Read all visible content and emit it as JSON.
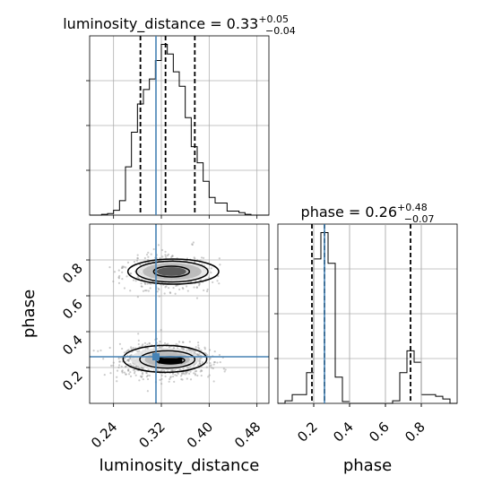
{
  "chart_data": {
    "type": "corner",
    "truths": {
      "luminosity_distance": 0.311,
      "phase": 0.26
    },
    "colors": {
      "truth": "#4682b4",
      "hist": "#000000",
      "grid": "#b0b0b0",
      "scatter": "#9a9a9a"
    },
    "params": [
      {
        "name": "luminosity_distance",
        "label": "luminosity_distance",
        "title": {
          "prefix": "luminosity_distance = 0.33",
          "upper": "+0.05",
          "lower": "−0.04"
        },
        "range": [
          0.2,
          0.5
        ],
        "ticks": [
          {
            "value": 0.24,
            "label": "0.24"
          },
          {
            "value": 0.32,
            "label": "0.32"
          },
          {
            "value": 0.4,
            "label": "0.40"
          },
          {
            "value": 0.48,
            "label": "0.48"
          }
        ],
        "quantiles": [
          0.285,
          0.327,
          0.376
        ],
        "hist_edges": [
          0.2,
          0.21,
          0.22,
          0.23,
          0.24,
          0.25,
          0.26,
          0.27,
          0.28,
          0.29,
          0.3,
          0.31,
          0.32,
          0.33,
          0.34,
          0.35,
          0.36,
          0.37,
          0.38,
          0.39,
          0.4,
          0.41,
          0.42,
          0.43,
          0.44,
          0.45,
          0.46,
          0.47,
          0.48,
          0.49,
          0.5
        ],
        "hist_counts": [
          0,
          0,
          1,
          2,
          6,
          18,
          60,
          103,
          138,
          156,
          169,
          192,
          212,
          200,
          178,
          160,
          121,
          85,
          65,
          42,
          22,
          15,
          15,
          5,
          5,
          3,
          1,
          0,
          0,
          0
        ]
      },
      {
        "name": "phase",
        "label": "phase",
        "title": {
          "prefix": "phase = 0.26",
          "upper": "+0.48",
          "lower": "−0.07"
        },
        "range": [
          0.0,
          1.0
        ],
        "ticks": [
          {
            "value": 0.2,
            "label": "0.2"
          },
          {
            "value": 0.4,
            "label": "0.4"
          },
          {
            "value": 0.6,
            "label": "0.6"
          },
          {
            "value": 0.8,
            "label": "0.8"
          }
        ],
        "quantiles": [
          0.19,
          0.26,
          0.74
        ],
        "hist_edges": [
          0.0,
          0.04,
          0.08,
          0.12,
          0.16,
          0.2,
          0.24,
          0.28,
          0.32,
          0.36,
          0.4,
          0.44,
          0.48,
          0.52,
          0.56,
          0.6,
          0.64,
          0.68,
          0.72,
          0.76,
          0.8,
          0.84,
          0.88,
          0.92,
          0.96,
          1.0
        ],
        "hist_counts": [
          0,
          3,
          10,
          10,
          35,
          165,
          195,
          160,
          30,
          2,
          0,
          0,
          0,
          0,
          0,
          0,
          3,
          35,
          60,
          47,
          10,
          10,
          8,
          5,
          0
        ]
      }
    ],
    "density_2d": {
      "x": "luminosity_distance",
      "y": "phase",
      "modes": [
        {
          "x": 0.327,
          "y": 0.238,
          "sx": 0.036,
          "sy": 0.045,
          "w": 0.68
        },
        {
          "x": 0.33,
          "y": 0.735,
          "sx": 0.036,
          "sy": 0.05,
          "w": 0.32
        }
      ],
      "contours": [
        {
          "level": "inner",
          "modes": [
            {
              "x": 0.335,
              "y": 0.24,
              "rx": 0.024,
              "ry": 0.02
            },
            {
              "x": 0.337,
              "y": 0.735,
              "rx": 0.03,
              "ry": 0.03
            }
          ]
        },
        {
          "level": "middle",
          "modes": [
            {
              "x": 0.33,
              "y": 0.245,
              "rx": 0.046,
              "ry": 0.048
            },
            {
              "x": 0.338,
              "y": 0.735,
              "rx": 0.06,
              "ry": 0.058
            }
          ]
        },
        {
          "level": "outer",
          "modes": [
            {
              "x": 0.326,
              "y": 0.248,
              "rx": 0.07,
              "ry": 0.075
            },
            {
              "x": 0.34,
              "y": 0.735,
              "rx": 0.076,
              "ry": 0.07
            }
          ]
        }
      ]
    }
  }
}
